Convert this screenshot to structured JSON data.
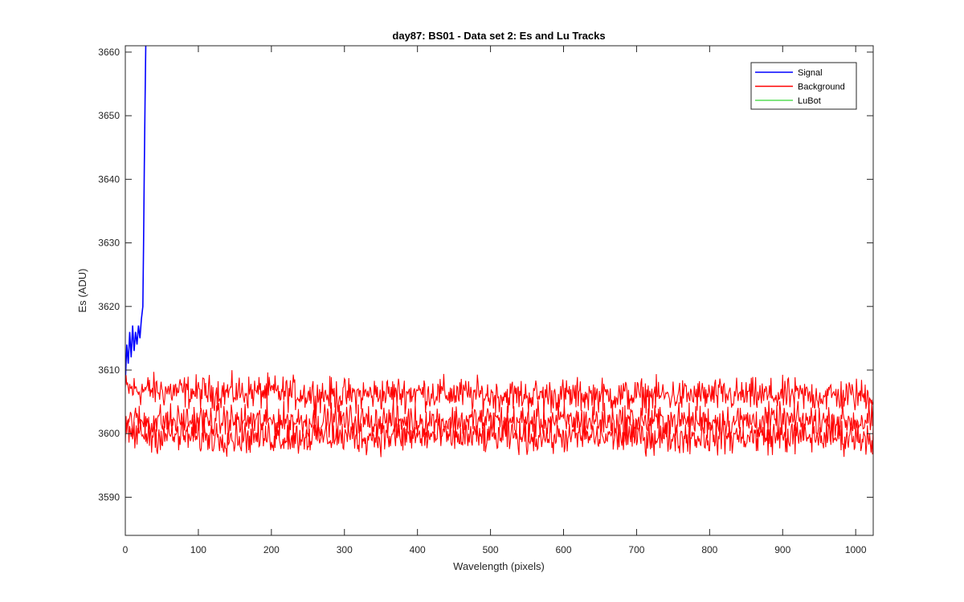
{
  "chart_data": {
    "type": "line",
    "title": "day87: BS01 - Data set 2: Es and Lu Tracks",
    "xlabel": "Wavelength (pixels)",
    "ylabel": "Es (ADU)",
    "xlim": [
      0,
      1024
    ],
    "ylim": [
      3584,
      3661
    ],
    "x_ticks": [
      0,
      100,
      200,
      300,
      400,
      500,
      600,
      700,
      800,
      900,
      1000
    ],
    "y_ticks": [
      3590,
      3600,
      3610,
      3620,
      3630,
      3640,
      3650,
      3660
    ],
    "grid": false,
    "legend_position": "top-right",
    "series": [
      {
        "name": "Signal",
        "color": "#0000ff",
        "x": [
          0,
          2,
          4,
          6,
          8,
          10,
          12,
          14,
          16,
          18,
          20,
          22,
          24,
          25,
          26,
          27,
          28
        ],
        "y": [
          3608,
          3614,
          3611,
          3616,
          3612,
          3617,
          3613,
          3616,
          3614,
          3617,
          3615,
          3618,
          3620,
          3630,
          3642,
          3652,
          3661
        ]
      },
      {
        "name": "Background",
        "color": "#ff0000",
        "x": [
          0,
          100,
          200,
          300,
          400,
          500,
          600,
          700,
          800,
          900,
          1024
        ],
        "y": [
          3607,
          3606.5,
          3606.5,
          3606,
          3606.5,
          3606,
          3606,
          3606,
          3606,
          3606,
          3606
        ]
      },
      {
        "name": "",
        "color": "#ff0000",
        "x": [
          0,
          100,
          200,
          300,
          400,
          500,
          600,
          700,
          800,
          900,
          1024
        ],
        "y": [
          3602,
          3602,
          3602,
          3602,
          3602,
          3602,
          3602,
          3602,
          3602,
          3602,
          3602
        ]
      },
      {
        "name": "",
        "color": "#ff0000",
        "x": [
          0,
          100,
          200,
          300,
          400,
          500,
          600,
          700,
          800,
          900,
          1024
        ],
        "y": [
          3600,
          3599.5,
          3599.5,
          3599.5,
          3599.5,
          3599.5,
          3599.5,
          3599.5,
          3599.5,
          3599.5,
          3599.5
        ]
      },
      {
        "name": "LuBot",
        "color": "#00cc00",
        "x": [],
        "y": []
      }
    ]
  }
}
